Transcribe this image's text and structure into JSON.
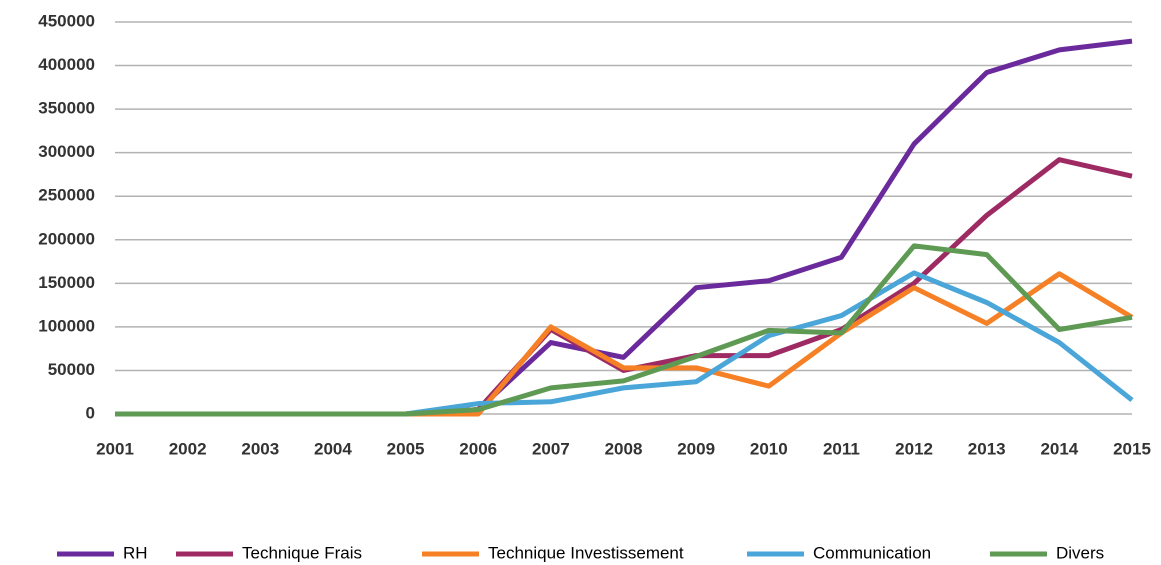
{
  "chart_data": {
    "type": "line",
    "categories": [
      "2001",
      "2002",
      "2003",
      "2004",
      "2005",
      "2006",
      "2007",
      "2008",
      "2009",
      "2010",
      "2011",
      "2012",
      "2013",
      "2014",
      "2015"
    ],
    "series": [
      {
        "name": "RH",
        "color": "#6a2a9c",
        "values": [
          0,
          0,
          0,
          0,
          0,
          5000,
          82000,
          65000,
          145000,
          153000,
          180000,
          310000,
          392000,
          418000,
          428000
        ]
      },
      {
        "name": "Technique Frais",
        "color": "#9e2a63",
        "values": [
          0,
          0,
          0,
          0,
          0,
          5000,
          97000,
          50000,
          67000,
          67000,
          97000,
          150000,
          228000,
          292000,
          273000
        ]
      },
      {
        "name": "Technique Investissement",
        "color": "#f58025",
        "values": [
          0,
          0,
          0,
          0,
          0,
          0,
          100000,
          53000,
          53000,
          32000,
          93000,
          145000,
          104000,
          161000,
          111000
        ]
      },
      {
        "name": "Communication",
        "color": "#4aa6d8",
        "values": [
          0,
          0,
          0,
          0,
          0,
          12000,
          14000,
          30000,
          37000,
          90000,
          113000,
          162000,
          128000,
          82000,
          16000
        ]
      },
      {
        "name": "Divers",
        "color": "#5f9a55",
        "values": [
          0,
          0,
          0,
          0,
          0,
          5000,
          30000,
          38000,
          66000,
          96000,
          93000,
          193000,
          183000,
          97000,
          111000
        ]
      }
    ],
    "ylim": [
      0,
      450000
    ],
    "yticks": [
      0,
      50000,
      100000,
      150000,
      200000,
      250000,
      300000,
      350000,
      400000,
      450000
    ],
    "grid": true,
    "legend": "bottom"
  }
}
